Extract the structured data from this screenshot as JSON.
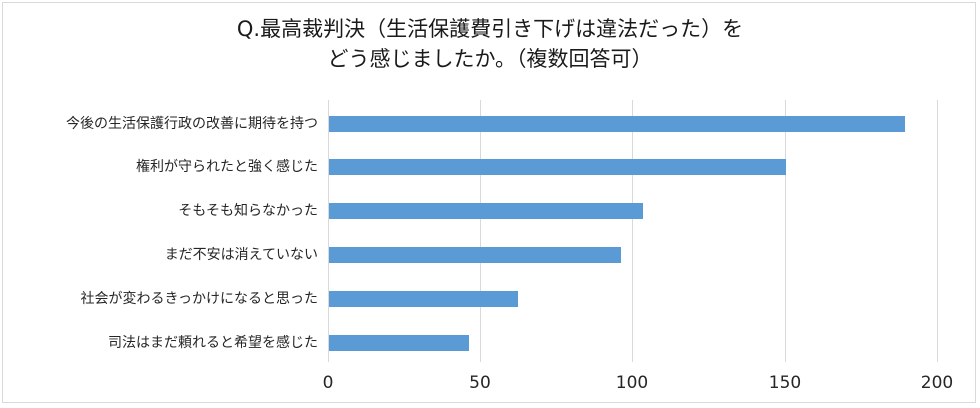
{
  "chart_data": {
    "type": "bar",
    "orientation": "horizontal",
    "title": "Q.最高裁判決（生活保護費引き下げは違法だった）をどう感じましたか。（複数回答可）",
    "title_lines": [
      "Q.最高裁判決（生活保護費引き下げは違法だった）を",
      "どう感じましたか。（複数回答可）"
    ],
    "categories": [
      "今後の生活保護行政の改善に期待を持つ",
      "権利が守られたと強く感じた",
      "そもそも知らなかった",
      "まだ不安は消えていない",
      "社会が変わるきっかけになると思った",
      "司法はまだ頼れると希望を感じた"
    ],
    "values": [
      189,
      150,
      103,
      96,
      62,
      46
    ],
    "xlabel": "",
    "ylabel": "",
    "xlim": [
      0,
      200
    ],
    "x_ticks": [
      "0",
      "50",
      "100",
      "150",
      "200"
    ],
    "grid": true,
    "legend": null,
    "bar_color": "#5B9BD5"
  }
}
